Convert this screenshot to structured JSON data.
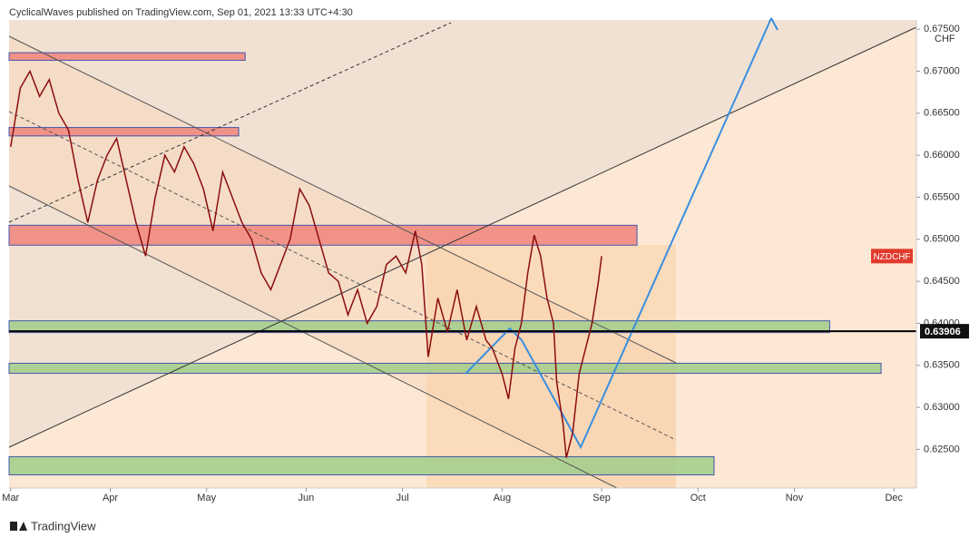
{
  "header": "CyclicalWaves published on TradingView.com, Sep 01, 2021 13:33 UTC+4:30",
  "footer": "TradingView",
  "chart_data": {
    "type": "line",
    "currency": "CHF",
    "xlim": [
      -0.5,
      282
    ],
    "xticks": [
      {
        "value": 0,
        "label": "Mar"
      },
      {
        "value": 31,
        "label": "Apr"
      },
      {
        "value": 61,
        "label": "May"
      },
      {
        "value": 92,
        "label": "Jun"
      },
      {
        "value": 122,
        "label": "Jul"
      },
      {
        "value": 153,
        "label": "Aug"
      },
      {
        "value": 184,
        "label": "Sep"
      },
      {
        "value": 214,
        "label": "Oct"
      },
      {
        "value": 244,
        "label": "Nov"
      },
      {
        "value": 275,
        "label": "Dec"
      }
    ],
    "ylim": [
      0.6204,
      0.6761
    ],
    "yticks": [
      {
        "value": 0.675,
        "label": "0.67500"
      },
      {
        "value": 0.67,
        "label": "0.67000"
      },
      {
        "value": 0.665,
        "label": "0.66500"
      },
      {
        "value": 0.66,
        "label": "0.66000"
      },
      {
        "value": 0.655,
        "label": "0.65500"
      },
      {
        "value": 0.65,
        "label": "0.65000"
      },
      {
        "value": 0.645,
        "label": "0.64500"
      },
      {
        "value": 0.64,
        "label": "0.64000"
      },
      {
        "value": 0.635,
        "label": "0.63500"
      },
      {
        "value": 0.63,
        "label": "0.63000"
      },
      {
        "value": 0.625,
        "label": "0.62500"
      }
    ],
    "hline": 0.63906,
    "series": [
      {
        "name": "NZDCHF",
        "color": "#8b0d0d",
        "x": [
          0,
          3,
          6,
          9,
          12,
          15,
          18,
          21,
          24,
          27,
          30,
          33,
          36,
          39,
          42,
          45,
          48,
          51,
          54,
          57,
          60,
          63,
          66,
          69,
          72,
          75,
          78,
          81,
          84,
          87,
          90,
          93,
          96,
          99,
          102,
          105,
          108,
          111,
          114,
          117,
          120,
          123,
          126,
          128,
          130,
          133,
          136,
          139,
          142,
          145,
          148,
          150,
          153,
          155,
          157,
          159,
          161,
          163,
          165,
          167,
          169,
          170,
          172,
          173,
          175,
          177,
          179,
          181,
          183,
          184
        ],
        "values": [
          0.661,
          0.668,
          0.67,
          0.667,
          0.669,
          0.665,
          0.663,
          0.657,
          0.652,
          0.657,
          0.66,
          0.662,
          0.657,
          0.652,
          0.648,
          0.655,
          0.66,
          0.658,
          0.661,
          0.659,
          0.656,
          0.651,
          0.658,
          0.655,
          0.652,
          0.65,
          0.646,
          0.644,
          0.647,
          0.65,
          0.656,
          0.654,
          0.65,
          0.646,
          0.645,
          0.641,
          0.644,
          0.64,
          0.642,
          0.647,
          0.648,
          0.646,
          0.651,
          0.647,
          0.636,
          0.643,
          0.639,
          0.644,
          0.638,
          0.642,
          0.638,
          0.637,
          0.634,
          0.631,
          0.637,
          0.64,
          0.646,
          0.6505,
          0.648,
          0.643,
          0.64,
          0.633,
          0.628,
          0.624,
          0.627,
          0.634,
          0.637,
          0.64,
          0.645,
          0.648
        ]
      }
    ],
    "zones": [
      {
        "x": [
          -0.5,
          73
        ],
        "y": [
          0.6713,
          0.6722
        ],
        "color": "#f08a80"
      },
      {
        "x": [
          -0.5,
          71
        ],
        "y": [
          0.6623,
          0.6633
        ],
        "color": "#f08a80"
      },
      {
        "x": [
          -0.5,
          195
        ],
        "y": [
          0.6493,
          0.65167
        ],
        "color": "#f08a80"
      },
      {
        "x": [
          -0.5,
          255
        ],
        "y": [
          0.6389,
          0.6403
        ],
        "color": "#a6cf8e"
      },
      {
        "x": [
          -0.5,
          271
        ],
        "y": [
          0.63405,
          0.63525
        ],
        "color": "#a6cf8e"
      },
      {
        "x": [
          -0.5,
          219
        ],
        "y": [
          0.62197,
          0.62413
        ],
        "color": "#a6cf8e"
      }
    ]
  }
}
